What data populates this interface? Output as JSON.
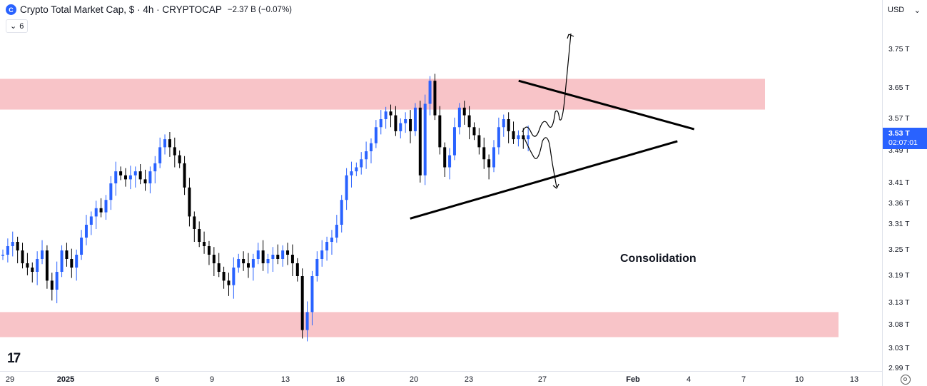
{
  "header": {
    "logo_text": "C",
    "title": "Crypto Total Market Cap, $ · 4h · CRYPTOCAP",
    "change": "−2.37 B (−0.07%)",
    "indicator_toggle": "6"
  },
  "currency": "USD",
  "current_price": {
    "value": "3.53 T",
    "countdown": "02:07:01"
  },
  "annotation": "Consolidation",
  "tv_logo": "17",
  "colors": {
    "up": "#2962ff",
    "down": "#000000",
    "zone": "#f8c4c8",
    "price_label": "#2962ff"
  },
  "chart_data": {
    "type": "candlestick",
    "title": "Crypto Total Market Cap, $ · 4h · CRYPTOCAP",
    "price_ticks": [
      "3.75 T",
      "3.65 T",
      "3.57 T",
      "3.49 T",
      "3.41 T",
      "3.36 T",
      "3.31 T",
      "3.25 T",
      "3.19 T",
      "3.13 T",
      "3.08 T",
      "3.03 T",
      "2.99 T"
    ],
    "time_ticks": [
      "29",
      "2025",
      "6",
      "9",
      "13",
      "16",
      "20",
      "23",
      "27",
      "Feb",
      "4",
      "7",
      "10",
      "13"
    ],
    "close_path": [
      3.24,
      3.26,
      3.27,
      3.25,
      3.22,
      3.21,
      3.2,
      3.23,
      3.25,
      3.18,
      3.16,
      3.2,
      3.25,
      3.23,
      3.21,
      3.24,
      3.28,
      3.31,
      3.33,
      3.35,
      3.34,
      3.37,
      3.41,
      3.44,
      3.43,
      3.42,
      3.43,
      3.44,
      3.42,
      3.41,
      3.44,
      3.46,
      3.5,
      3.52,
      3.5,
      3.48,
      3.46,
      3.4,
      3.33,
      3.3,
      3.27,
      3.26,
      3.24,
      3.22,
      3.2,
      3.18,
      3.17,
      3.21,
      3.23,
      3.22,
      3.21,
      3.23,
      3.25,
      3.22,
      3.23,
      3.24,
      3.23,
      3.25,
      3.24,
      3.22,
      3.19,
      3.07,
      3.11,
      3.19,
      3.23,
      3.25,
      3.27,
      3.28,
      3.31,
      3.37,
      3.43,
      3.44,
      3.45,
      3.47,
      3.49,
      3.51,
      3.55,
      3.57,
      3.59,
      3.58,
      3.54,
      3.56,
      3.57,
      3.54,
      3.6,
      3.43,
      3.61,
      3.67,
      3.58,
      3.5,
      3.45,
      3.48,
      3.55,
      3.6,
      3.58,
      3.55,
      3.53,
      3.5,
      3.47,
      3.45,
      3.5,
      3.55,
      3.57,
      3.54,
      3.52,
      3.53,
      3.52,
      3.53
    ],
    "zones": [
      {
        "from": 3.595,
        "to": 3.675
      },
      {
        "from": 3.055,
        "to": 3.11
      }
    ],
    "triangle": {
      "upper": [
        [
          0.588,
          3.67
        ],
        [
          0.787,
          3.545
        ]
      ],
      "lower": [
        [
          0.465,
          3.325
        ],
        [
          0.768,
          3.515
        ]
      ]
    },
    "projections": [
      "breakout-up",
      "breakdown-down"
    ]
  }
}
